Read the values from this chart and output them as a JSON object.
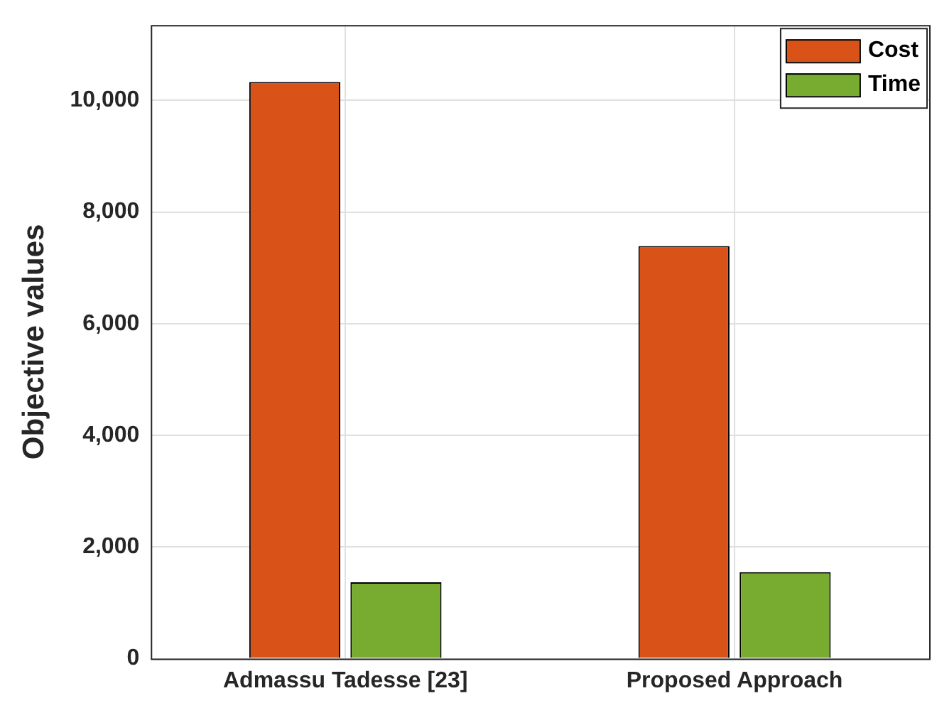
{
  "chart_data": {
    "type": "bar",
    "ylabel": "Objective values",
    "categories": [
      "Admassu Tadesse [23]",
      "Proposed Approach"
    ],
    "series": [
      {
        "name": "Cost",
        "color": "#d95319",
        "values": [
          10330,
          7390
        ]
      },
      {
        "name": "Time",
        "color": "#77ac30",
        "values": [
          1370,
          1550
        ]
      }
    ],
    "ylim": [
      0,
      11350
    ],
    "yticks": [
      {
        "value": 0,
        "label": "0"
      },
      {
        "value": 2000,
        "label": "2,000"
      },
      {
        "value": 4000,
        "label": "4,000"
      },
      {
        "value": 6000,
        "label": "6,000"
      },
      {
        "value": 8000,
        "label": "8,000"
      },
      {
        "value": 10000,
        "label": "10,000"
      }
    ],
    "grid": true,
    "legend": "top right"
  }
}
